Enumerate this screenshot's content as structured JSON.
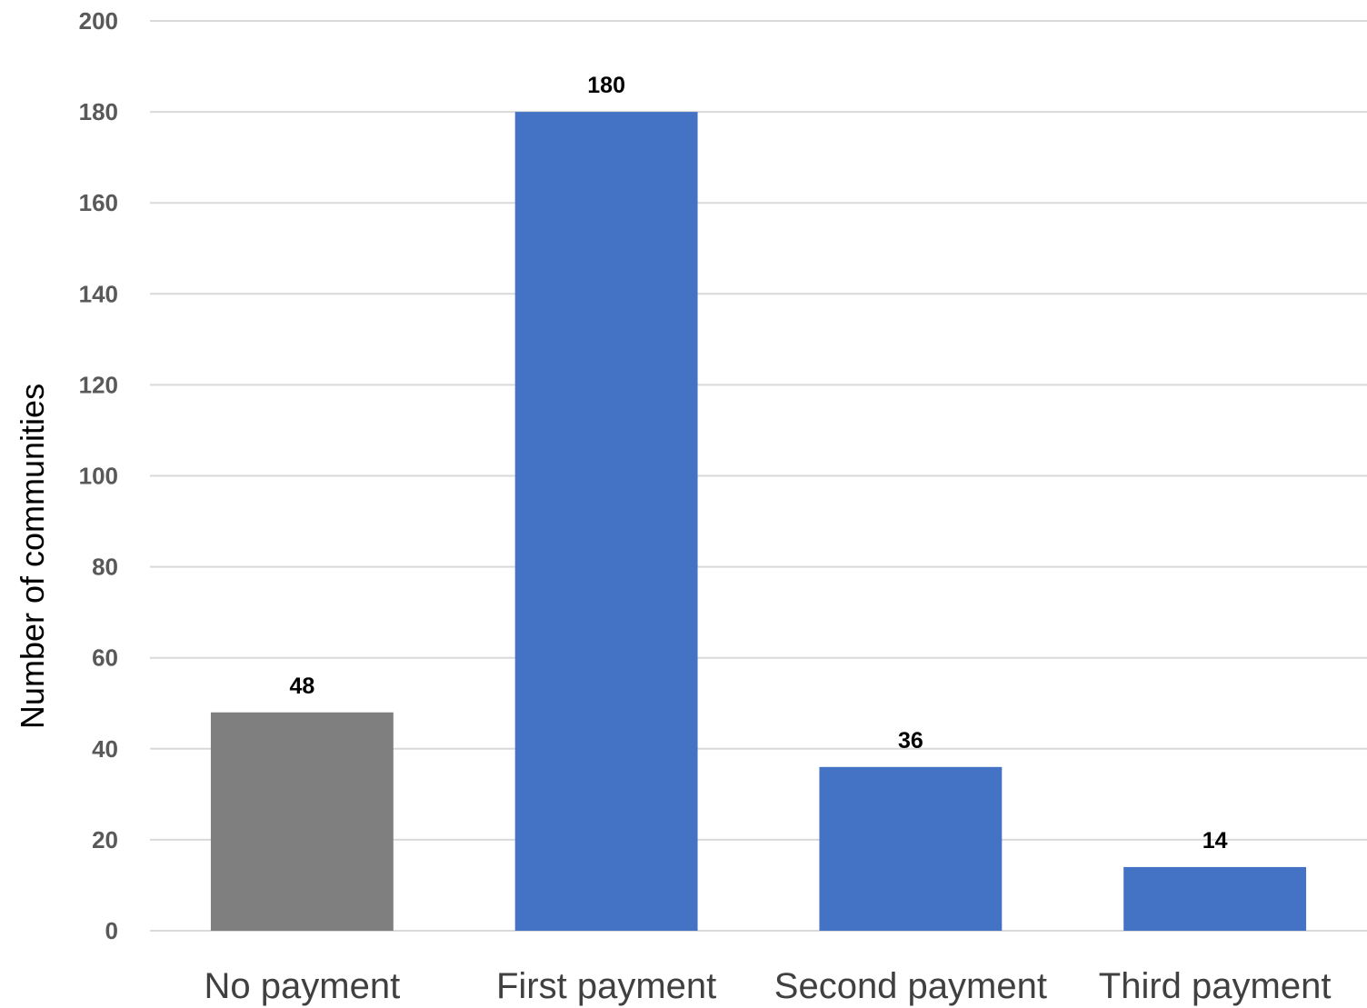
{
  "chart_data": {
    "type": "bar",
    "categories": [
      "No payment",
      "First payment",
      "Second payment",
      "Third payment"
    ],
    "values": [
      48,
      180,
      36,
      14
    ],
    "bar_colors": [
      "#7f7f7f",
      "#4472c4",
      "#4472c4",
      "#4472c4"
    ],
    "title": "",
    "xlabel": "",
    "ylabel": "Number of communities",
    "ylim": [
      0,
      200
    ],
    "yticks": [
      0,
      20,
      40,
      60,
      80,
      100,
      120,
      140,
      160,
      180,
      200
    ],
    "grid": true,
    "data_labels": true
  },
  "colors": {
    "gridline": "#d9d9d9",
    "tick_text": "#595959",
    "category_text": "#404040"
  }
}
